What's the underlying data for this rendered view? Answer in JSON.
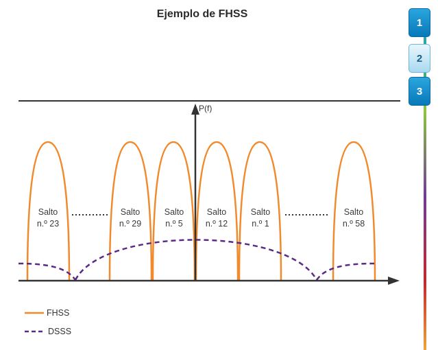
{
  "title": "Ejemplo de FHSS",
  "axis": {
    "y_label": "P(f)"
  },
  "hops": [
    {
      "line1": "Salto",
      "line2": "n.º 23"
    },
    {
      "line1": "Salto",
      "line2": "n.º 29"
    },
    {
      "line1": "Salto",
      "line2": "n.º 5"
    },
    {
      "line1": "Salto",
      "line2": "n.º 12"
    },
    {
      "line1": "Salto",
      "line2": "n.º 1"
    },
    {
      "line1": "Salto",
      "line2": "n.º 58"
    }
  ],
  "legend": [
    {
      "label": "FHSS",
      "color": "#f08a2c",
      "style": "solid"
    },
    {
      "label": "DSSS",
      "color": "#5b2a86",
      "style": "dashed"
    }
  ],
  "nav": {
    "buttons": [
      "1",
      "2",
      "3"
    ],
    "selected": "2"
  }
}
